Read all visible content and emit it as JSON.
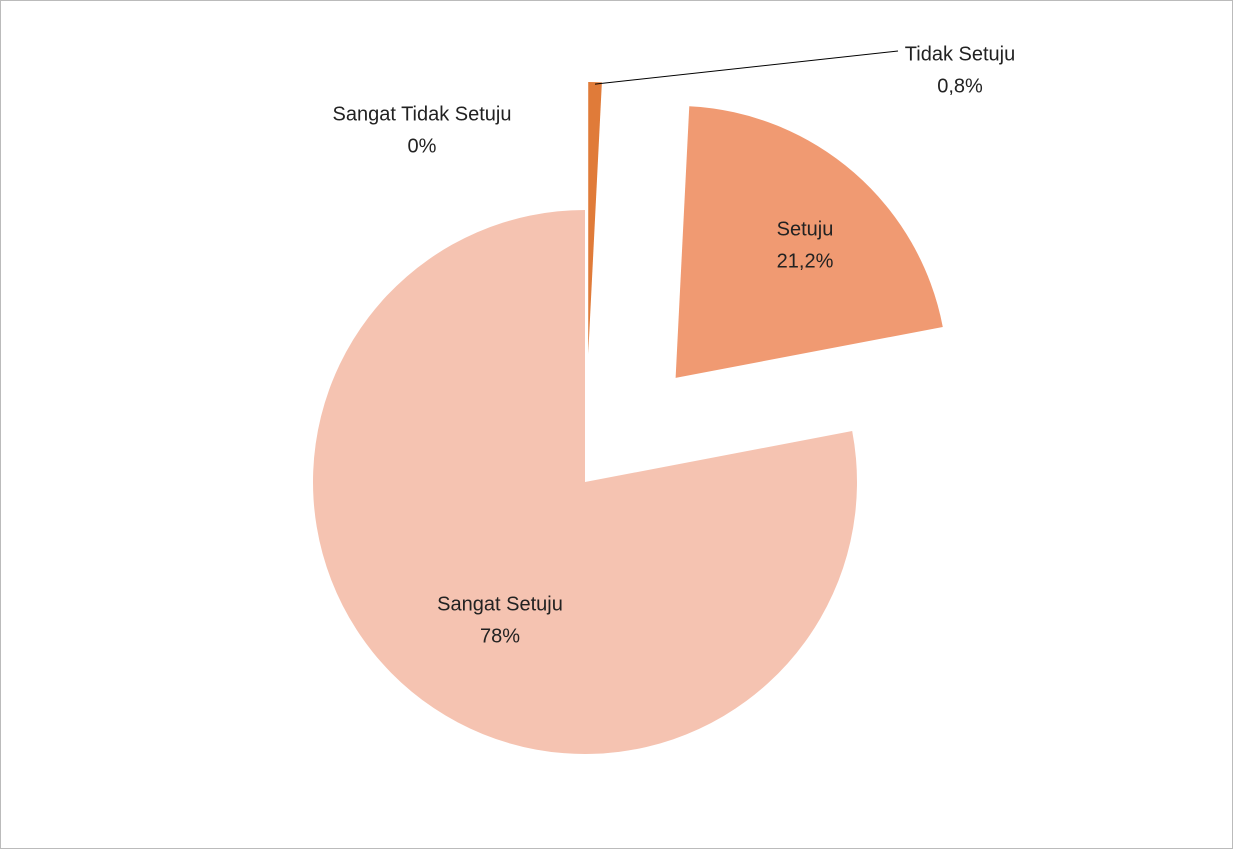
{
  "chart_data": {
    "type": "pie",
    "categories": [
      "Sangat Tidak Setuju",
      "Tidak Setuju",
      "Setuju",
      "Sangat Setuju"
    ],
    "values": [
      0,
      0.8,
      21.2,
      78
    ],
    "value_labels": [
      "0%",
      "0,8%",
      "21,2%",
      "78%"
    ],
    "colors": [
      "#c0504d",
      "#e07b39",
      "#f09a72",
      "#f5c3b1"
    ]
  }
}
